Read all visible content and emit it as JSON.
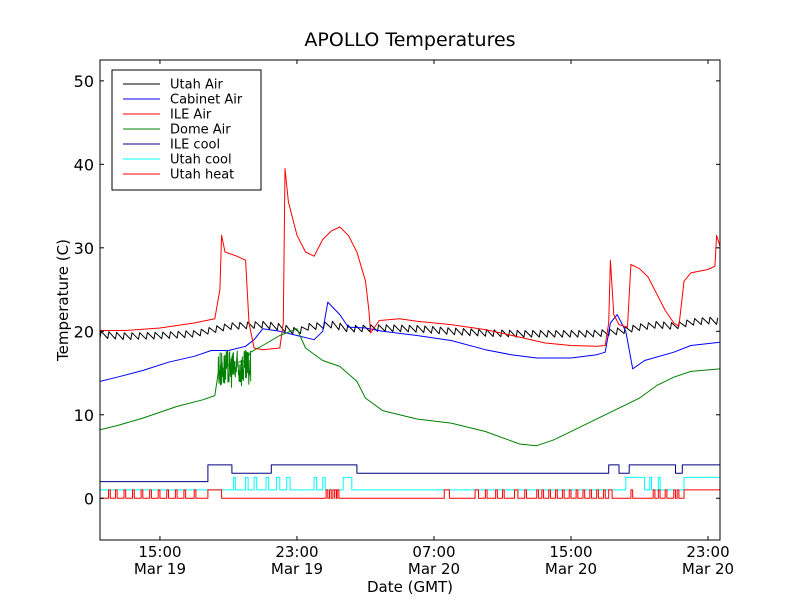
{
  "chart_data": {
    "type": "line",
    "title": "APOLLO Temperatures",
    "xlabel": "Date (GMT)",
    "ylabel": "Temperature (C)",
    "xlim": [
      11.5,
      47.7
    ],
    "ylim": [
      -5,
      52.5
    ],
    "yticks": [
      0,
      10,
      20,
      30,
      40,
      50
    ],
    "xticks": [
      {
        "x": 15,
        "time": "15:00",
        "date": "Mar 19"
      },
      {
        "x": 23,
        "time": "23:00",
        "date": "Mar 19"
      },
      {
        "x": 31,
        "time": "07:00",
        "date": "Mar 20"
      },
      {
        "x": 39,
        "time": "15:00",
        "date": "Mar 20"
      },
      {
        "x": 47,
        "time": "23:00",
        "date": "Mar 20"
      }
    ],
    "legend_position": "top-left",
    "series": [
      {
        "name": "Utah Air",
        "color": "#000000",
        "style": "sawtooth",
        "amp": 0.8,
        "period": 0.45,
        "points": [
          [
            11.5,
            19.6
          ],
          [
            13,
            19.4
          ],
          [
            15,
            19.5
          ],
          [
            17,
            19.7
          ],
          [
            19,
            20.6
          ],
          [
            21,
            20.8
          ],
          [
            22,
            20.5
          ],
          [
            23,
            19.9
          ],
          [
            23.5,
            20.5
          ],
          [
            25,
            20.8
          ],
          [
            26,
            20.3
          ],
          [
            28,
            20.4
          ],
          [
            30,
            20.3
          ],
          [
            32,
            20.0
          ],
          [
            34,
            19.8
          ],
          [
            36,
            19.7
          ],
          [
            38,
            19.7
          ],
          [
            40,
            19.7
          ],
          [
            41,
            19.8
          ],
          [
            42,
            20.1
          ],
          [
            43,
            20.5
          ],
          [
            44,
            20.8
          ],
          [
            45,
            20.6
          ],
          [
            46,
            21.1
          ],
          [
            47,
            21.3
          ],
          [
            47.7,
            21.2
          ]
        ]
      },
      {
        "name": "Cabinet Air",
        "color": "#0000ff",
        "points": [
          [
            11.5,
            14.0
          ],
          [
            12.5,
            14.5
          ],
          [
            14,
            15.3
          ],
          [
            15.5,
            16.3
          ],
          [
            17,
            17.0
          ],
          [
            18,
            17.7
          ],
          [
            19,
            17.7
          ],
          [
            20,
            18.2
          ],
          [
            20.5,
            19.0
          ],
          [
            21,
            20.3
          ],
          [
            22,
            20.0
          ],
          [
            23,
            19.5
          ],
          [
            24,
            19.0
          ],
          [
            24.5,
            20.0
          ],
          [
            24.8,
            23.5
          ],
          [
            25.5,
            22.0
          ],
          [
            26,
            20.5
          ],
          [
            27,
            20.4
          ],
          [
            28,
            20.0
          ],
          [
            30,
            19.5
          ],
          [
            32,
            18.9
          ],
          [
            34,
            17.8
          ],
          [
            35.5,
            17.2
          ],
          [
            37,
            16.8
          ],
          [
            39,
            16.8
          ],
          [
            40.5,
            17.2
          ],
          [
            41,
            17.5
          ],
          [
            41.3,
            21.0
          ],
          [
            41.7,
            22.0
          ],
          [
            42.2,
            20.0
          ],
          [
            42.6,
            15.5
          ],
          [
            43.3,
            16.5
          ],
          [
            45,
            17.5
          ],
          [
            46,
            18.3
          ],
          [
            47.7,
            18.7
          ]
        ]
      },
      {
        "name": "ILE Air",
        "color": "#ff0000",
        "points": [
          [
            11.5,
            20.1
          ],
          [
            13,
            20.1
          ],
          [
            15,
            20.4
          ],
          [
            17,
            21.0
          ],
          [
            18.2,
            21.5
          ],
          [
            18.5,
            25.0
          ],
          [
            18.6,
            31.5
          ],
          [
            18.8,
            29.5
          ],
          [
            19.5,
            29.0
          ],
          [
            20,
            28.5
          ],
          [
            20.2,
            21.0
          ],
          [
            20.5,
            18.0
          ],
          [
            21,
            17.8
          ],
          [
            22,
            18.0
          ],
          [
            22.2,
            21.0
          ],
          [
            22.3,
            39.5
          ],
          [
            22.5,
            35.5
          ],
          [
            23,
            31.5
          ],
          [
            23.5,
            29.5
          ],
          [
            24,
            29.0
          ],
          [
            24.5,
            31.0
          ],
          [
            25,
            32.0
          ],
          [
            25.5,
            32.5
          ],
          [
            26,
            31.5
          ],
          [
            26.5,
            29.5
          ],
          [
            27,
            26.0
          ],
          [
            27.2,
            22.5
          ],
          [
            27.3,
            19.8
          ],
          [
            27.8,
            21.3
          ],
          [
            29,
            21.5
          ],
          [
            30,
            21.2
          ],
          [
            32,
            20.8
          ],
          [
            34,
            20.2
          ],
          [
            36,
            19.3
          ],
          [
            37.5,
            18.6
          ],
          [
            39,
            18.3
          ],
          [
            40.5,
            18.2
          ],
          [
            41,
            18.3
          ],
          [
            41.2,
            21.0
          ],
          [
            41.3,
            28.5
          ],
          [
            41.5,
            22.0
          ],
          [
            41.8,
            20.8
          ],
          [
            42.3,
            20.5
          ],
          [
            42.5,
            28.0
          ],
          [
            43,
            27.5
          ],
          [
            43.5,
            26.5
          ],
          [
            44,
            24.5
          ],
          [
            44.5,
            22.5
          ],
          [
            45,
            21.0
          ],
          [
            45.3,
            20.6
          ],
          [
            45.6,
            26.0
          ],
          [
            46,
            27.0
          ],
          [
            47,
            27.4
          ],
          [
            47.4,
            27.8
          ],
          [
            47.5,
            31.5
          ],
          [
            47.7,
            30.2
          ]
        ]
      },
      {
        "name": "Dome Air",
        "color": "#008000",
        "points": [
          [
            11.5,
            8.2
          ],
          [
            12.5,
            8.7
          ],
          [
            14,
            9.6
          ],
          [
            16,
            11.0
          ],
          [
            17.5,
            11.8
          ],
          [
            18.2,
            12.3
          ],
          [
            18.4,
            15.0
          ],
          [
            19,
            16.0
          ],
          [
            20,
            16.5
          ],
          [
            20.3,
            17.5
          ],
          [
            21,
            18.3
          ],
          [
            22,
            19.5
          ],
          [
            23,
            20.3
          ],
          [
            23.5,
            18.0
          ],
          [
            24.5,
            16.5
          ],
          [
            25.5,
            15.8
          ],
          [
            26.5,
            14.0
          ],
          [
            27,
            12.0
          ],
          [
            28,
            10.5
          ],
          [
            30,
            9.5
          ],
          [
            32,
            9.0
          ],
          [
            34,
            8.0
          ],
          [
            36,
            6.5
          ],
          [
            37,
            6.3
          ],
          [
            38,
            7.0
          ],
          [
            39.5,
            8.5
          ],
          [
            41,
            10.0
          ],
          [
            43,
            12.0
          ],
          [
            44,
            13.5
          ],
          [
            45,
            14.5
          ],
          [
            46,
            15.2
          ],
          [
            47.7,
            15.5
          ]
        ]
      },
      {
        "name": "ILE cool",
        "color": "#000080",
        "style": "step",
        "points": [
          [
            11.5,
            2
          ],
          [
            17.8,
            2
          ],
          [
            17.8,
            4
          ],
          [
            19.2,
            4
          ],
          [
            19.2,
            3
          ],
          [
            21.5,
            3
          ],
          [
            21.5,
            4
          ],
          [
            26.5,
            4
          ],
          [
            26.5,
            3
          ],
          [
            41.2,
            3
          ],
          [
            41.2,
            4
          ],
          [
            41.8,
            4
          ],
          [
            41.8,
            3
          ],
          [
            42.4,
            3
          ],
          [
            42.4,
            4
          ],
          [
            45.1,
            4
          ],
          [
            45.1,
            3
          ],
          [
            45.5,
            3
          ],
          [
            45.5,
            4
          ],
          [
            47.7,
            4
          ]
        ]
      },
      {
        "name": "Utah cool",
        "color": "#00ffff",
        "style": "step",
        "points": [
          [
            11.5,
            1
          ],
          [
            19.3,
            1
          ],
          [
            19.3,
            2.5
          ],
          [
            19.4,
            2.5
          ],
          [
            19.4,
            1
          ],
          [
            20,
            1
          ],
          [
            20,
            2.5
          ],
          [
            20.15,
            2.5
          ],
          [
            20.15,
            1
          ],
          [
            20.5,
            1
          ],
          [
            20.5,
            2.5
          ],
          [
            20.65,
            2.5
          ],
          [
            20.65,
            1
          ],
          [
            21.2,
            1
          ],
          [
            21.2,
            2.5
          ],
          [
            21.35,
            2.5
          ],
          [
            21.35,
            1
          ],
          [
            21.8,
            1
          ],
          [
            21.8,
            2.5
          ],
          [
            22,
            2.5
          ],
          [
            22,
            1
          ],
          [
            22.4,
            1
          ],
          [
            22.4,
            2.5
          ],
          [
            22.6,
            2.5
          ],
          [
            22.6,
            1
          ],
          [
            24,
            1
          ],
          [
            24,
            2.5
          ],
          [
            24.15,
            2.5
          ],
          [
            24.15,
            1
          ],
          [
            24.5,
            1
          ],
          [
            24.5,
            2.5
          ],
          [
            24.65,
            2.5
          ],
          [
            24.65,
            1
          ],
          [
            25.7,
            1
          ],
          [
            25.7,
            2.5
          ],
          [
            26.2,
            2.5
          ],
          [
            26.2,
            1
          ],
          [
            42.2,
            1
          ],
          [
            42.2,
            2.5
          ],
          [
            43.3,
            2.5
          ],
          [
            43.3,
            1
          ],
          [
            43.6,
            1
          ],
          [
            43.6,
            2.5
          ],
          [
            43.7,
            2.5
          ],
          [
            43.7,
            1
          ],
          [
            44.1,
            1
          ],
          [
            44.1,
            2.5
          ],
          [
            44.2,
            2.5
          ],
          [
            44.2,
            1
          ],
          [
            45.6,
            1
          ],
          [
            45.6,
            2.5
          ],
          [
            47.7,
            2.5
          ]
        ]
      },
      {
        "name": "Utah heat",
        "color": "#ff0000",
        "style": "pulses",
        "base": 0,
        "high": 1,
        "pulses": [
          [
            12.0,
            12.1
          ],
          [
            12.4,
            12.5
          ],
          [
            12.9,
            13.0
          ],
          [
            13.4,
            13.5
          ],
          [
            13.9,
            14.0
          ],
          [
            14.4,
            14.5
          ],
          [
            14.9,
            15.0
          ],
          [
            15.4,
            15.5
          ],
          [
            15.9,
            16.0
          ],
          [
            16.4,
            16.5
          ],
          [
            17.0,
            17.1
          ],
          [
            17.8,
            18.6
          ],
          [
            24.7,
            24.8
          ],
          [
            24.9,
            25.0
          ],
          [
            25.1,
            25.2
          ],
          [
            25.2,
            25.3
          ],
          [
            25.35,
            25.45
          ],
          [
            31.6,
            31.9
          ],
          [
            33.4,
            33.6
          ],
          [
            34.0,
            34.1
          ],
          [
            34.6,
            34.7
          ],
          [
            35.0,
            35.1
          ],
          [
            35.7,
            35.9
          ],
          [
            36.3,
            36.4
          ],
          [
            37.0,
            37.1
          ],
          [
            37.3,
            37.4
          ],
          [
            37.7,
            37.8
          ],
          [
            38.1,
            38.2
          ],
          [
            38.5,
            38.6
          ],
          [
            38.9,
            39.0
          ],
          [
            39.3,
            39.4
          ],
          [
            39.7,
            39.8
          ],
          [
            40.1,
            40.2
          ],
          [
            40.5,
            40.6
          ],
          [
            40.9,
            41.0
          ],
          [
            41.2,
            41.4
          ],
          [
            42.5,
            42.6
          ],
          [
            43.8,
            43.9
          ],
          [
            44.1,
            44.2
          ],
          [
            44.5,
            44.6
          ],
          [
            45.0,
            45.1
          ],
          [
            45.2,
            45.3
          ],
          [
            45.6,
            47.7
          ]
        ]
      }
    ]
  }
}
